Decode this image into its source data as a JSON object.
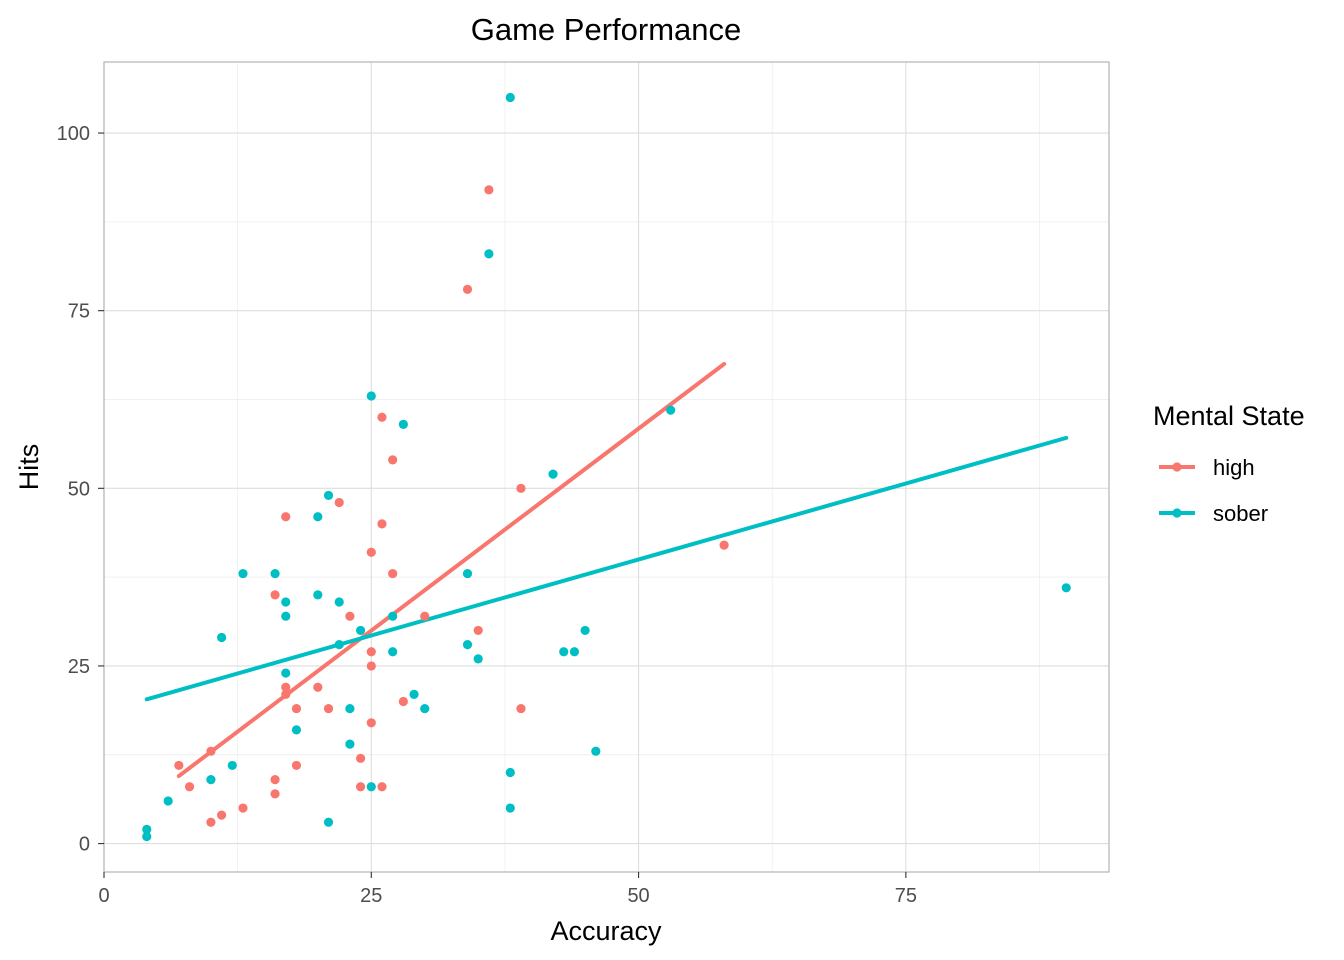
{
  "chart_data": {
    "type": "scatter",
    "title": "Game Performance",
    "xlabel": "Accuracy",
    "ylabel": "Hits",
    "xlim": [
      0,
      94
    ],
    "ylim": [
      -4,
      110
    ],
    "x_ticks": [
      0,
      25,
      50,
      75
    ],
    "y_ticks": [
      0,
      25,
      50,
      75,
      100
    ],
    "x_tick_labels": [
      "0",
      "25",
      "50",
      "75"
    ],
    "y_tick_labels": [
      "0",
      "25",
      "50",
      "75",
      "100"
    ],
    "grid": true,
    "legend": {
      "title": "Mental State",
      "placement": "right"
    },
    "series": [
      {
        "name": "high",
        "color": "#F8766D",
        "points": [
          [
            36,
            92
          ],
          [
            34,
            78
          ],
          [
            26,
            60
          ],
          [
            27,
            54
          ],
          [
            22,
            48
          ],
          [
            39,
            50
          ],
          [
            17,
            46
          ],
          [
            26,
            45
          ],
          [
            58,
            42
          ],
          [
            25,
            41
          ],
          [
            27,
            38
          ],
          [
            16,
            35
          ],
          [
            23,
            32
          ],
          [
            30,
            32
          ],
          [
            35,
            30
          ],
          [
            25,
            27
          ],
          [
            25,
            25
          ],
          [
            17,
            22
          ],
          [
            20,
            22
          ],
          [
            17,
            21
          ],
          [
            28,
            20
          ],
          [
            18,
            19
          ],
          [
            21,
            19
          ],
          [
            39,
            19
          ],
          [
            25,
            17
          ],
          [
            10,
            13
          ],
          [
            24,
            12
          ],
          [
            7,
            11
          ],
          [
            18,
            11
          ],
          [
            16,
            9
          ],
          [
            8,
            8
          ],
          [
            24,
            8
          ],
          [
            26,
            8
          ],
          [
            16,
            7
          ],
          [
            13,
            5
          ],
          [
            11,
            4
          ],
          [
            10,
            3
          ]
        ],
        "trend": {
          "x": [
            7,
            58
          ],
          "y": [
            9.5,
            67.5
          ]
        }
      },
      {
        "name": "sober",
        "color": "#00BFC4",
        "points": [
          [
            38,
            105
          ],
          [
            36,
            83
          ],
          [
            25,
            63
          ],
          [
            53,
            61
          ],
          [
            28,
            59
          ],
          [
            42,
            52
          ],
          [
            21,
            49
          ],
          [
            20,
            46
          ],
          [
            13,
            38
          ],
          [
            16,
            38
          ],
          [
            34,
            38
          ],
          [
            90,
            36
          ],
          [
            20,
            35
          ],
          [
            17,
            34
          ],
          [
            22,
            34
          ],
          [
            17,
            32
          ],
          [
            27,
            32
          ],
          [
            45,
            30
          ],
          [
            24,
            30
          ],
          [
            11,
            29
          ],
          [
            22,
            28
          ],
          [
            34,
            28
          ],
          [
            27,
            27
          ],
          [
            43,
            27
          ],
          [
            44,
            27
          ],
          [
            35,
            26
          ],
          [
            17,
            24
          ],
          [
            29,
            21
          ],
          [
            23,
            19
          ],
          [
            30,
            19
          ],
          [
            18,
            16
          ],
          [
            23,
            14
          ],
          [
            46,
            13
          ],
          [
            12,
            11
          ],
          [
            38,
            10
          ],
          [
            10,
            9
          ],
          [
            25,
            8
          ],
          [
            6,
            6
          ],
          [
            38,
            5
          ],
          [
            21,
            3
          ],
          [
            4,
            2
          ],
          [
            4,
            1
          ]
        ],
        "trend": {
          "x": [
            4,
            90
          ],
          "y": [
            20.3,
            57.1
          ]
        }
      }
    ]
  }
}
